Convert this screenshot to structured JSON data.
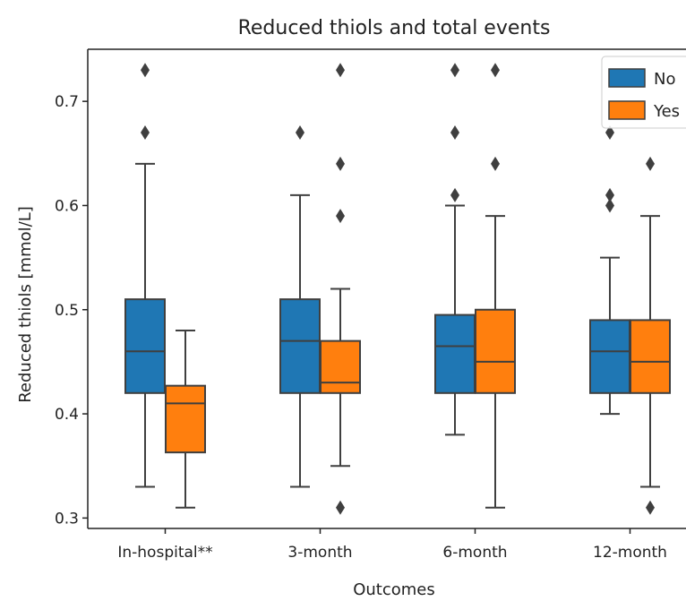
{
  "chart_data": {
    "type": "boxplot",
    "title": "Reduced thiols and total events",
    "xlabel": "Outcomes",
    "ylabel": "Reduced thiols [mmol/L]",
    "ylim": [
      0.29,
      0.75
    ],
    "yticks": [
      0.3,
      0.4,
      0.5,
      0.6,
      0.7
    ],
    "yticklabels": [
      "0.3",
      "0.4",
      "0.5",
      "0.6",
      "0.7"
    ],
    "categories": [
      "In-hospital**",
      "3-month",
      "6-month",
      "12-month"
    ],
    "legend": {
      "placement": "top-right",
      "entries": [
        "No",
        "Yes"
      ]
    },
    "colors": {
      "No": "#1f77b4",
      "Yes": "#ff7f0e",
      "edge": "#3f3f3f"
    },
    "series": [
      {
        "name": "No",
        "boxes": [
          {
            "q1": 0.42,
            "median": 0.46,
            "q3": 0.51,
            "whislo": 0.33,
            "whishi": 0.64,
            "fliers": [
              0.67,
              0.73
            ]
          },
          {
            "q1": 0.42,
            "median": 0.47,
            "q3": 0.51,
            "whislo": 0.33,
            "whishi": 0.61,
            "fliers": [
              0.67
            ]
          },
          {
            "q1": 0.42,
            "median": 0.465,
            "q3": 0.495,
            "whislo": 0.38,
            "whishi": 0.6,
            "fliers": [
              0.61,
              0.67,
              0.73
            ]
          },
          {
            "q1": 0.42,
            "median": 0.46,
            "q3": 0.49,
            "whislo": 0.4,
            "whishi": 0.55,
            "fliers": [
              0.6,
              0.61,
              0.67
            ]
          }
        ]
      },
      {
        "name": "Yes",
        "boxes": [
          {
            "q1": 0.363,
            "median": 0.41,
            "q3": 0.427,
            "whislo": 0.31,
            "whishi": 0.48,
            "fliers": []
          },
          {
            "q1": 0.42,
            "median": 0.43,
            "q3": 0.47,
            "whislo": 0.35,
            "whishi": 0.52,
            "fliers": [
              0.31,
              0.59,
              0.64,
              0.73
            ]
          },
          {
            "q1": 0.42,
            "median": 0.45,
            "q3": 0.5,
            "whislo": 0.31,
            "whishi": 0.59,
            "fliers": [
              0.64,
              0.73
            ]
          },
          {
            "q1": 0.42,
            "median": 0.45,
            "q3": 0.49,
            "whislo": 0.33,
            "whishi": 0.59,
            "fliers": [
              0.31,
              0.64
            ]
          }
        ]
      }
    ]
  }
}
